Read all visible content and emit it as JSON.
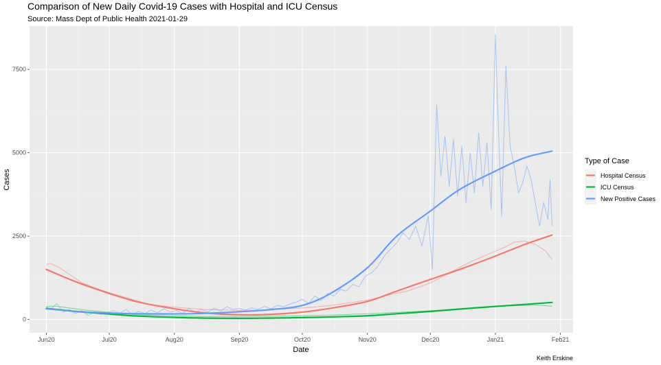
{
  "chart_data": {
    "type": "line",
    "title": "Comparison of New Daily Covid-19 Cases with Hospital and ICU Census",
    "subtitle": "Source: Mass Dept of Public Health 2021-01-29",
    "xlabel": "Date",
    "ylabel": "Cases",
    "caption": "Keith Erskine",
    "x_range": [
      "2020-05-24",
      "2021-02-07"
    ],
    "ylim": [
      -400,
      8800
    ],
    "x_ticks": [
      {
        "date": "2020-06-01",
        "label": "Jun20"
      },
      {
        "date": "2020-07-01",
        "label": "Jul20"
      },
      {
        "date": "2020-08-01",
        "label": "Aug20"
      },
      {
        "date": "2020-09-01",
        "label": "Sep20"
      },
      {
        "date": "2020-10-01",
        "label": "Oct20"
      },
      {
        "date": "2020-11-01",
        "label": "Nov20"
      },
      {
        "date": "2020-12-01",
        "label": "Dec20"
      },
      {
        "date": "2021-01-01",
        "label": "Jan21"
      },
      {
        "date": "2021-02-01",
        "label": "Feb21"
      }
    ],
    "y_ticks": [
      0,
      2500,
      5000,
      7500
    ],
    "legend": {
      "title": "Type of Case",
      "position": "right"
    },
    "grid": true,
    "series": [
      {
        "name": "Hospital Census",
        "color": "#F8766D",
        "raw": {
          "x": [
            "2020-06-01",
            "2020-06-03",
            "2020-06-07",
            "2020-06-12",
            "2020-06-18",
            "2020-06-25",
            "2020-07-01",
            "2020-07-10",
            "2020-07-20",
            "2020-08-01",
            "2020-08-15",
            "2020-09-01",
            "2020-09-15",
            "2020-10-01",
            "2020-10-15",
            "2020-11-01",
            "2020-11-10",
            "2020-11-20",
            "2020-12-01",
            "2020-12-10",
            "2020-12-20",
            "2021-01-01",
            "2021-01-05",
            "2021-01-10",
            "2021-01-15",
            "2021-01-20",
            "2021-01-25",
            "2021-01-28"
          ],
          "y": [
            1650,
            1680,
            1560,
            1350,
            1100,
            930,
            800,
            640,
            450,
            370,
            300,
            270,
            290,
            340,
            420,
            580,
            720,
            850,
            1090,
            1400,
            1720,
            2050,
            2150,
            2320,
            2350,
            2250,
            2050,
            1800
          ]
        },
        "smooth": {
          "x": [
            "2020-06-01",
            "2020-06-15",
            "2020-07-01",
            "2020-07-15",
            "2020-08-01",
            "2020-08-15",
            "2020-09-01",
            "2020-09-15",
            "2020-10-01",
            "2020-10-15",
            "2020-11-01",
            "2020-11-15",
            "2020-12-01",
            "2020-12-15",
            "2021-01-01",
            "2021-01-15",
            "2021-01-28"
          ],
          "y": [
            1500,
            1130,
            780,
            520,
            320,
            200,
            140,
            150,
            220,
            340,
            540,
            850,
            1200,
            1500,
            1900,
            2250,
            2530
          ]
        }
      },
      {
        "name": "ICU Census",
        "color": "#00BA38",
        "raw": {
          "x": [
            "2020-06-01",
            "2020-06-05",
            "2020-06-10",
            "2020-06-20",
            "2020-07-01",
            "2020-07-15",
            "2020-08-01",
            "2020-08-15",
            "2020-09-01",
            "2020-09-15",
            "2020-10-01",
            "2020-10-15",
            "2020-11-01",
            "2020-11-15",
            "2020-12-01",
            "2020-12-15",
            "2021-01-01",
            "2021-01-10",
            "2021-01-20",
            "2021-01-28"
          ],
          "y": [
            390,
            400,
            360,
            280,
            210,
            140,
            110,
            90,
            90,
            95,
            110,
            130,
            170,
            210,
            260,
            320,
            390,
            410,
            430,
            400
          ]
        },
        "smooth": {
          "x": [
            "2020-06-01",
            "2020-06-15",
            "2020-07-01",
            "2020-07-15",
            "2020-08-01",
            "2020-08-15",
            "2020-09-01",
            "2020-09-15",
            "2020-10-01",
            "2020-10-15",
            "2020-11-01",
            "2020-11-15",
            "2020-12-01",
            "2020-12-15",
            "2021-01-01",
            "2021-01-15",
            "2021-01-28"
          ],
          "y": [
            330,
            240,
            160,
            100,
            60,
            40,
            35,
            40,
            55,
            75,
            110,
            170,
            240,
            310,
            390,
            450,
            510
          ]
        }
      },
      {
        "name": "New Positive Cases",
        "color": "#619CFF",
        "raw": {
          "x": [
            "2020-06-01",
            "2020-06-03",
            "2020-06-06",
            "2020-06-09",
            "2020-06-12",
            "2020-06-15",
            "2020-06-18",
            "2020-06-21",
            "2020-06-24",
            "2020-06-27",
            "2020-06-30",
            "2020-07-03",
            "2020-07-06",
            "2020-07-09",
            "2020-07-12",
            "2020-07-15",
            "2020-07-18",
            "2020-07-21",
            "2020-07-24",
            "2020-07-27",
            "2020-07-30",
            "2020-08-02",
            "2020-08-05",
            "2020-08-08",
            "2020-08-11",
            "2020-08-14",
            "2020-08-17",
            "2020-08-20",
            "2020-08-23",
            "2020-08-26",
            "2020-08-29",
            "2020-09-01",
            "2020-09-04",
            "2020-09-07",
            "2020-09-10",
            "2020-09-13",
            "2020-09-16",
            "2020-09-19",
            "2020-09-22",
            "2020-09-25",
            "2020-09-28",
            "2020-10-01",
            "2020-10-04",
            "2020-10-07",
            "2020-10-10",
            "2020-10-13",
            "2020-10-16",
            "2020-10-19",
            "2020-10-22",
            "2020-10-25",
            "2020-10-28",
            "2020-10-31",
            "2020-11-03",
            "2020-11-06",
            "2020-11-09",
            "2020-11-12",
            "2020-11-15",
            "2020-11-18",
            "2020-11-21",
            "2020-11-24",
            "2020-11-27",
            "2020-11-30",
            "2020-12-02",
            "2020-12-04",
            "2020-12-06",
            "2020-12-08",
            "2020-12-10",
            "2020-12-12",
            "2020-12-14",
            "2020-12-16",
            "2020-12-18",
            "2020-12-20",
            "2020-12-22",
            "2020-12-24",
            "2020-12-26",
            "2020-12-28",
            "2020-12-30",
            "2021-01-01",
            "2021-01-02",
            "2021-01-04",
            "2021-01-06",
            "2021-01-08",
            "2021-01-10",
            "2021-01-12",
            "2021-01-14",
            "2021-01-16",
            "2021-01-18",
            "2021-01-20",
            "2021-01-22",
            "2021-01-24",
            "2021-01-26",
            "2021-01-27",
            "2021-01-28"
          ],
          "y": [
            380,
            300,
            480,
            220,
            300,
            180,
            260,
            120,
            230,
            150,
            210,
            260,
            180,
            300,
            150,
            240,
            180,
            280,
            200,
            320,
            230,
            260,
            180,
            330,
            210,
            300,
            220,
            340,
            250,
            380,
            300,
            330,
            280,
            350,
            300,
            390,
            320,
            420,
            380,
            460,
            520,
            600,
            480,
            700,
            560,
            780,
            700,
            900,
            850,
            1050,
            980,
            1300,
            1400,
            1600,
            1900,
            2100,
            2300,
            2600,
            2400,
            2800,
            2200,
            3100,
            1500,
            6450,
            4300,
            5500,
            4000,
            5400,
            3700,
            5200,
            3500,
            5000,
            3800,
            5600,
            4000,
            5300,
            3300,
            8550,
            6500,
            3100,
            7600,
            5200,
            4600,
            3800,
            4100,
            4600,
            4200,
            3500,
            2800,
            3500,
            3000,
            4200,
            2800
          ]
        },
        "smooth": {
          "x": [
            "2020-06-01",
            "2020-06-15",
            "2020-07-01",
            "2020-07-15",
            "2020-08-01",
            "2020-08-15",
            "2020-09-01",
            "2020-09-15",
            "2020-10-01",
            "2020-10-15",
            "2020-11-01",
            "2020-11-15",
            "2020-12-01",
            "2020-12-15",
            "2021-01-01",
            "2021-01-15",
            "2021-01-28"
          ],
          "y": [
            320,
            240,
            190,
            170,
            165,
            180,
            230,
            290,
            420,
            800,
            1550,
            2500,
            3250,
            3900,
            4450,
            4850,
            5050
          ]
        }
      }
    ]
  }
}
